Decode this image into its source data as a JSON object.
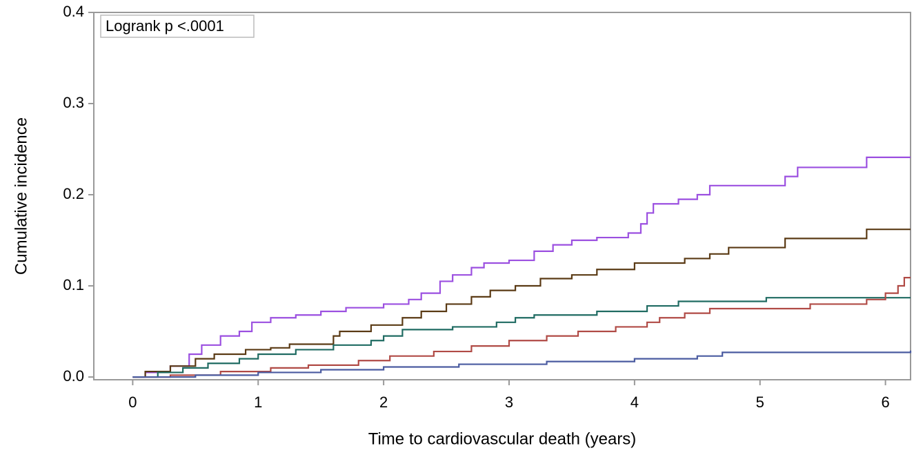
{
  "chart_data": {
    "type": "line",
    "step": true,
    "xlabel": "Time to cardiovascular death (years)",
    "ylabel": "Cumulative incidence",
    "annotation": "Logrank p <.0001",
    "xlim": [
      -0.31,
      6.2
    ],
    "xticks": [
      0,
      1,
      2,
      3,
      4,
      5,
      6
    ],
    "ylim": [
      -0.003,
      0.4
    ],
    "yticks": [
      {
        "value": 0,
        "label": "0.0"
      },
      0.1,
      0.2,
      0.3,
      0.4
    ],
    "grid": false,
    "series": [
      {
        "color": "#9b4fe0",
        "x": [
          0,
          0.1,
          0.3,
          0.45,
          0.55,
          0.7,
          0.85,
          0.95,
          1.1,
          1.3,
          1.5,
          1.7,
          2.0,
          2.2,
          2.3,
          2.45,
          2.55,
          2.7,
          2.8,
          3.0,
          3.2,
          3.35,
          3.5,
          3.7,
          3.95,
          4.05,
          4.1,
          4.15,
          4.35,
          4.5,
          4.6,
          5.2,
          5.3,
          5.85,
          6.2
        ],
        "values": [
          0,
          0.005,
          0.012,
          0.025,
          0.035,
          0.045,
          0.05,
          0.06,
          0.065,
          0.068,
          0.072,
          0.076,
          0.08,
          0.085,
          0.092,
          0.105,
          0.112,
          0.12,
          0.125,
          0.128,
          0.138,
          0.145,
          0.15,
          0.153,
          0.158,
          0.168,
          0.18,
          0.19,
          0.195,
          0.2,
          0.21,
          0.22,
          0.23,
          0.241,
          0.241
        ]
      },
      {
        "color": "#5a3a14",
        "x": [
          0,
          0.1,
          0.3,
          0.5,
          0.65,
          0.9,
          1.1,
          1.25,
          1.6,
          1.65,
          1.9,
          2.15,
          2.3,
          2.5,
          2.7,
          2.85,
          3.05,
          3.25,
          3.5,
          3.7,
          4.0,
          4.4,
          4.6,
          4.75,
          5.2,
          5.85,
          6.2
        ],
        "values": [
          0,
          0.006,
          0.012,
          0.02,
          0.025,
          0.03,
          0.032,
          0.036,
          0.045,
          0.05,
          0.057,
          0.065,
          0.072,
          0.08,
          0.088,
          0.095,
          0.1,
          0.108,
          0.112,
          0.118,
          0.125,
          0.13,
          0.135,
          0.142,
          0.152,
          0.162,
          0.162
        ]
      },
      {
        "color": "#1f6b62",
        "x": [
          0,
          0.2,
          0.4,
          0.6,
          0.85,
          1.0,
          1.3,
          1.6,
          1.9,
          2.0,
          2.15,
          2.55,
          2.9,
          3.05,
          3.2,
          3.7,
          4.1,
          4.35,
          5.05,
          6.2
        ],
        "values": [
          0,
          0.005,
          0.01,
          0.015,
          0.02,
          0.025,
          0.03,
          0.035,
          0.04,
          0.045,
          0.052,
          0.055,
          0.06,
          0.065,
          0.068,
          0.072,
          0.078,
          0.083,
          0.087,
          0.087
        ]
      },
      {
        "color": "#b04a45",
        "x": [
          0,
          0.3,
          0.7,
          1.1,
          1.4,
          1.8,
          2.05,
          2.4,
          2.7,
          3.0,
          3.3,
          3.55,
          3.85,
          4.1,
          4.2,
          4.4,
          4.6,
          5.4,
          5.85,
          6.0,
          6.1,
          6.15,
          6.2
        ],
        "values": [
          0,
          0.002,
          0.006,
          0.01,
          0.013,
          0.018,
          0.023,
          0.028,
          0.034,
          0.04,
          0.045,
          0.05,
          0.055,
          0.06,
          0.065,
          0.07,
          0.075,
          0.08,
          0.085,
          0.092,
          0.1,
          0.109,
          0.109
        ]
      },
      {
        "color": "#4a5ba0",
        "x": [
          0,
          0.5,
          1.0,
          1.5,
          2.0,
          2.6,
          3.3,
          4.0,
          4.5,
          4.7,
          6.2
        ],
        "values": [
          0,
          0.002,
          0.005,
          0.008,
          0.011,
          0.014,
          0.017,
          0.02,
          0.023,
          0.027,
          0.029
        ]
      }
    ]
  }
}
